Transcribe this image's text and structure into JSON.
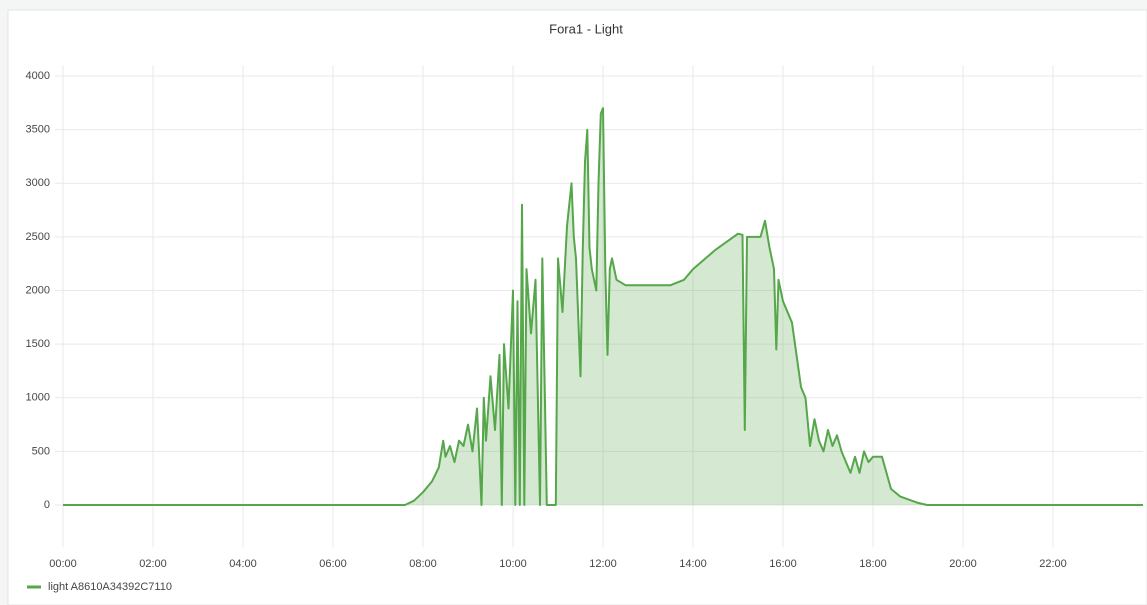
{
  "chart_data": {
    "type": "line",
    "title": "Fora1 - Light",
    "x": [
      0,
      7.6,
      7.8,
      8.0,
      8.2,
      8.35,
      8.45,
      8.5,
      8.6,
      8.7,
      8.8,
      8.9,
      9.0,
      9.1,
      9.2,
      9.3,
      9.35,
      9.4,
      9.5,
      9.6,
      9.7,
      9.75,
      9.8,
      9.9,
      10.0,
      10.05,
      10.1,
      10.15,
      10.2,
      10.25,
      10.3,
      10.4,
      10.5,
      10.6,
      10.65,
      10.7,
      10.75,
      10.95,
      11.0,
      11.1,
      11.2,
      11.3,
      11.35,
      11.4,
      11.5,
      11.55,
      11.6,
      11.65,
      11.7,
      11.75,
      11.85,
      11.9,
      11.95,
      12.0,
      12.05,
      12.1,
      12.15,
      12.2,
      12.3,
      12.5,
      13.0,
      13.5,
      13.8,
      14.0,
      14.5,
      15.0,
      15.1,
      15.15,
      15.2,
      15.5,
      15.6,
      15.7,
      15.8,
      15.85,
      15.9,
      16.0,
      16.2,
      16.4,
      16.5,
      16.6,
      16.7,
      16.8,
      16.9,
      17.0,
      17.1,
      17.2,
      17.3,
      17.4,
      17.5,
      17.6,
      17.7,
      17.8,
      17.9,
      18.0,
      18.2,
      18.3,
      18.4,
      18.6,
      19.0,
      19.2,
      24
    ],
    "series": [
      {
        "name": "light A8610A34392C7110",
        "color": "#56a64b",
        "values": [
          0,
          0,
          40,
          120,
          220,
          350,
          600,
          450,
          550,
          400,
          600,
          550,
          750,
          500,
          900,
          0,
          1000,
          600,
          1200,
          700,
          1400,
          0,
          1500,
          900,
          2000,
          0,
          1900,
          0,
          2800,
          0,
          2200,
          1600,
          2100,
          0,
          2300,
          1200,
          0,
          0,
          2300,
          1800,
          2600,
          3000,
          2500,
          2300,
          1200,
          2400,
          3200,
          3500,
          2400,
          2200,
          2000,
          3000,
          3650,
          3700,
          2200,
          1400,
          2200,
          2300,
          2100,
          2050,
          2050,
          2050,
          2100,
          2200,
          2380,
          2530,
          2520,
          700,
          2500,
          2500,
          2650,
          2400,
          2200,
          1450,
          2100,
          1900,
          1700,
          1100,
          1000,
          550,
          800,
          600,
          500,
          700,
          550,
          650,
          500,
          400,
          300,
          450,
          300,
          500,
          400,
          450,
          450,
          300,
          150,
          80,
          20,
          0,
          0
        ]
      }
    ],
    "xlim": [
      0,
      24
    ],
    "xticks": [
      {
        "value": 0,
        "label": "00:00"
      },
      {
        "value": 2,
        "label": "02:00"
      },
      {
        "value": 4,
        "label": "04:00"
      },
      {
        "value": 6,
        "label": "06:00"
      },
      {
        "value": 8,
        "label": "08:00"
      },
      {
        "value": 10,
        "label": "10:00"
      },
      {
        "value": 12,
        "label": "12:00"
      },
      {
        "value": 14,
        "label": "14:00"
      },
      {
        "value": 16,
        "label": "16:00"
      },
      {
        "value": 18,
        "label": "18:00"
      },
      {
        "value": 20,
        "label": "20:00"
      },
      {
        "value": 22,
        "label": "22:00"
      }
    ],
    "ylim": [
      -300,
      4100
    ],
    "yticks": [
      0,
      500,
      1000,
      1500,
      2000,
      2500,
      3000,
      3500,
      4000
    ],
    "grid": true,
    "legend": "bottom-left"
  }
}
